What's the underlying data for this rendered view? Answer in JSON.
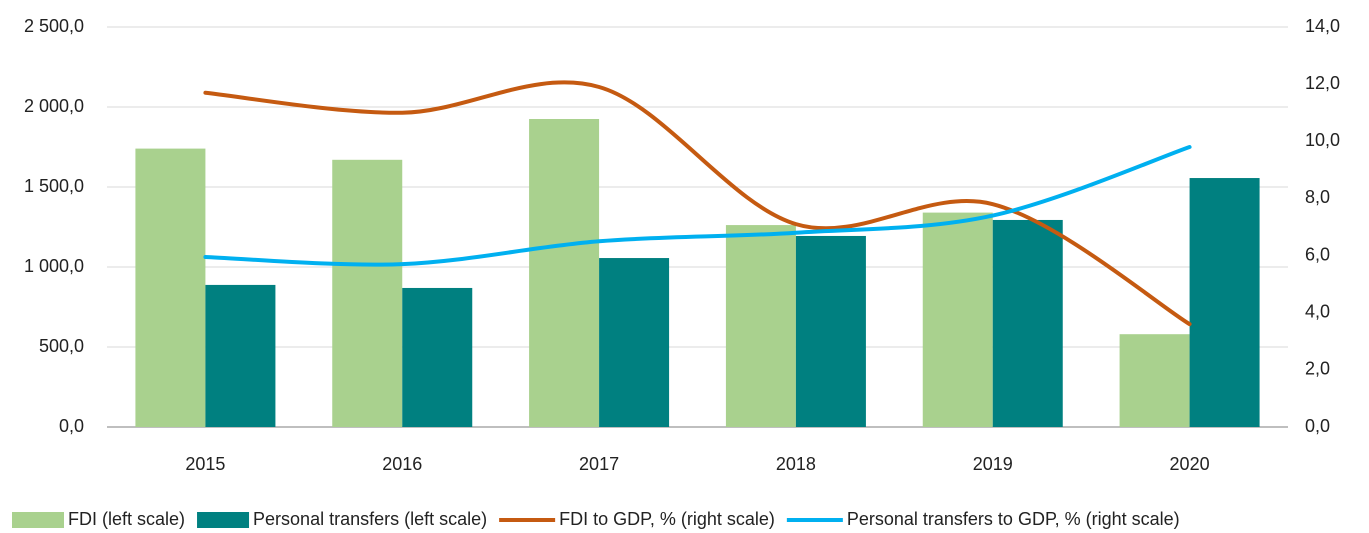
{
  "chart_data": {
    "type": "bar-line",
    "categories": [
      "2015",
      "2016",
      "2017",
      "2018",
      "2019",
      "2020"
    ],
    "series": [
      {
        "name": "FDI (left scale)",
        "type": "bar",
        "color": "#a9d18e",
        "values": [
          1740,
          1670,
          1925,
          1262,
          1340,
          580
        ]
      },
      {
        "name": "Personal transfers (left scale)",
        "type": "bar",
        "color": "#008080",
        "values": [
          888,
          869,
          1056,
          1194,
          1294,
          1556
        ]
      },
      {
        "name": "FDI to GDP, % (right scale)",
        "type": "line",
        "axis": "y2",
        "color": "#c55a11",
        "values": [
          11.7,
          11.0,
          11.9,
          7.1,
          7.8,
          3.6
        ]
      },
      {
        "name": "Personal transfers to GDP, % (right scale)",
        "type": "line",
        "axis": "y2",
        "color": "#00b0f0",
        "values": [
          5.95,
          5.7,
          6.5,
          6.8,
          7.4,
          9.8
        ]
      }
    ],
    "ylim": [
      0,
      2500
    ],
    "yticks": [
      {
        "value": 0,
        "label": "0,0"
      },
      {
        "value": 500,
        "label": "500,0"
      },
      {
        "value": 1000,
        "label": "1 000,0"
      },
      {
        "value": 1500,
        "label": "1 500,0"
      },
      {
        "value": 2000,
        "label": "2 000,0"
      },
      {
        "value": 2500,
        "label": "2 500,0"
      }
    ],
    "y2lim": [
      0,
      14
    ],
    "y2ticks": [
      {
        "value": 0,
        "label": "0,0"
      },
      {
        "value": 2,
        "label": "2,0"
      },
      {
        "value": 4,
        "label": "4,0"
      },
      {
        "value": 6,
        "label": "6,0"
      },
      {
        "value": 8,
        "label": "8,0"
      },
      {
        "value": 10,
        "label": "10,0"
      },
      {
        "value": 12,
        "label": "12,0"
      },
      {
        "value": 14,
        "label": "14,0"
      }
    ],
    "grid": true,
    "legend": "bottom"
  }
}
